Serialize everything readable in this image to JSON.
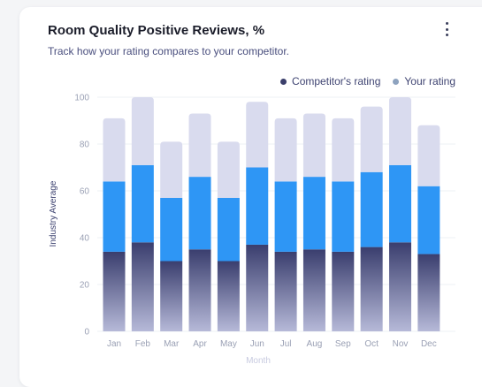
{
  "card": {
    "title": "Room Quality Positive Reviews, %",
    "subtitle": "Track how your rating compares to your competitor."
  },
  "icons": {
    "menu": "kebab-vertical-icon"
  },
  "colors": {
    "bottom_segment_top": "#3a3e6e",
    "bottom_segment_bottom": "#b6b9d8",
    "middle_segment": "#2e96f5",
    "top_segment": "#d9dbee",
    "legend_competitor": "#3b3f6b",
    "legend_yours": "#8ea3bf",
    "ylabel": "#3f4472",
    "xlabel": "#c8cbe0"
  },
  "chart_data": {
    "type": "bar",
    "stacked": true,
    "title": "Room Quality Positive Reviews, %",
    "subtitle": "Track how your rating compares to your competitor.",
    "xlabel": "Month",
    "ylabel": "Industry Average",
    "ylim": [
      0,
      100
    ],
    "yticks": [
      0,
      20,
      40,
      60,
      80,
      100
    ],
    "grid": true,
    "legend_position": "top-right",
    "legend": [
      "Competitor's rating",
      "Your rating"
    ],
    "categories": [
      "Jan",
      "Feb",
      "Mar",
      "Apr",
      "May",
      "Jun",
      "Jul",
      "Aug",
      "Sep",
      "Oct",
      "Nov",
      "Dec"
    ],
    "series": [
      {
        "values": [
          34,
          38,
          30,
          35,
          30,
          37,
          34,
          35,
          34,
          36,
          38,
          33
        ]
      },
      {
        "values": [
          30,
          33,
          27,
          31,
          27,
          33,
          30,
          31,
          30,
          32,
          33,
          29
        ]
      },
      {
        "values": [
          27,
          29,
          24,
          27,
          24,
          28,
          27,
          27,
          27,
          28,
          29,
          26
        ]
      }
    ]
  }
}
